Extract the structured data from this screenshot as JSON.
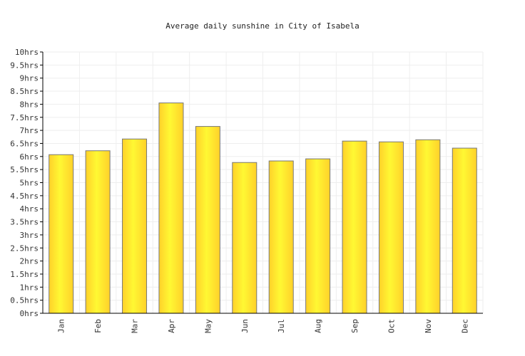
{
  "chart_data": {
    "type": "bar",
    "title": "Average daily sunshine in City of Isabela",
    "xlabel": "",
    "ylabel": "",
    "categories": [
      "Jan",
      "Feb",
      "Mar",
      "Apr",
      "May",
      "Jun",
      "Jul",
      "Aug",
      "Sep",
      "Oct",
      "Nov",
      "Dec"
    ],
    "values": [
      6.07,
      6.22,
      6.67,
      8.05,
      7.15,
      5.77,
      5.83,
      5.91,
      6.59,
      6.56,
      6.64,
      6.32
    ],
    "ylim": [
      0,
      10
    ],
    "yticks": [
      "0hrs",
      "0.5hrs",
      "1hrs",
      "1.5hrs",
      "2hrs",
      "2.5hrs",
      "3hrs",
      "3.5hrs",
      "4hrs",
      "4.5hrs",
      "5hrs",
      "5.5hrs",
      "6hrs",
      "6.5hrs",
      "7hrs",
      "7.5hrs",
      "8hrs",
      "8.5hrs",
      "9hrs",
      "9.5hrs",
      "10hrs"
    ],
    "grid": true,
    "legend": "none",
    "colors": {
      "bar_light": "#fff833",
      "bar_dark": "#ffd12a",
      "bar_stroke": "#777777",
      "grid": "#eeeeee",
      "axis": "#000000"
    }
  }
}
